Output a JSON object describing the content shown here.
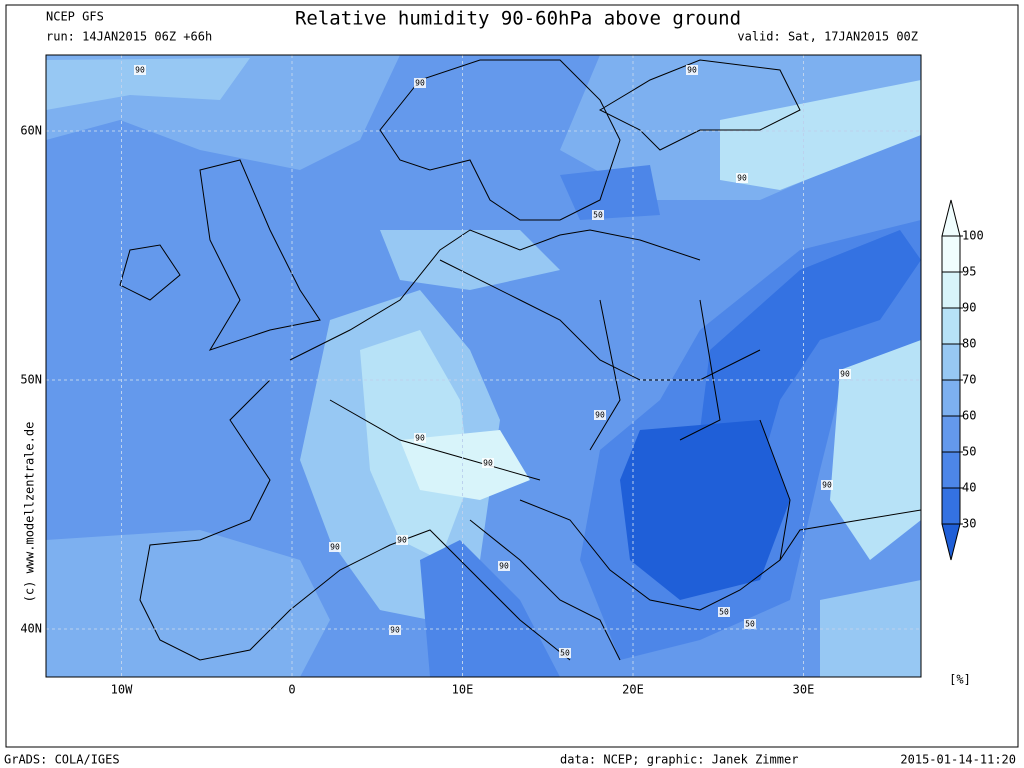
{
  "header": {
    "model": "NCEP GFS",
    "title": "Relative humidity 90-60hPa above ground",
    "run": "run: 14JAN2015 06Z +66h",
    "valid": "valid: Sat, 17JAN2015 00Z"
  },
  "map": {
    "lon_ticks": [
      {
        "value": -10,
        "label": "10W"
      },
      {
        "value": 0,
        "label": "0"
      },
      {
        "value": 10,
        "label": "10E"
      },
      {
        "value": 20,
        "label": "20E"
      },
      {
        "value": 30,
        "label": "30E"
      }
    ],
    "lat_ticks": [
      {
        "value": 40,
        "label": "40N"
      },
      {
        "value": 50,
        "label": "50N"
      },
      {
        "value": 60,
        "label": "60N"
      }
    ],
    "contour_labels": [
      "90",
      "90",
      "90",
      "50",
      "90",
      "90",
      "90",
      "90",
      "90",
      "90",
      "90",
      "90",
      "90",
      "90",
      "50",
      "50",
      "50"
    ]
  },
  "colorbar": {
    "levels": [
      30,
      40,
      50,
      60,
      70,
      80,
      90,
      95,
      100
    ],
    "colors": [
      "#1f5fd8",
      "#3472e2",
      "#4d86e8",
      "#6499ec",
      "#7db0f0",
      "#97c8f3",
      "#b7e2f7",
      "#d8f4fa",
      "#f0fdfe"
    ],
    "unit": "[%]"
  },
  "footer": {
    "left": "GrADS: COLA/IGES",
    "credit": "data: NCEP; graphic: Janek Zimmer",
    "date": "2015-01-14-11:20",
    "watermark": "(c)  www.modellzentrale.de"
  }
}
